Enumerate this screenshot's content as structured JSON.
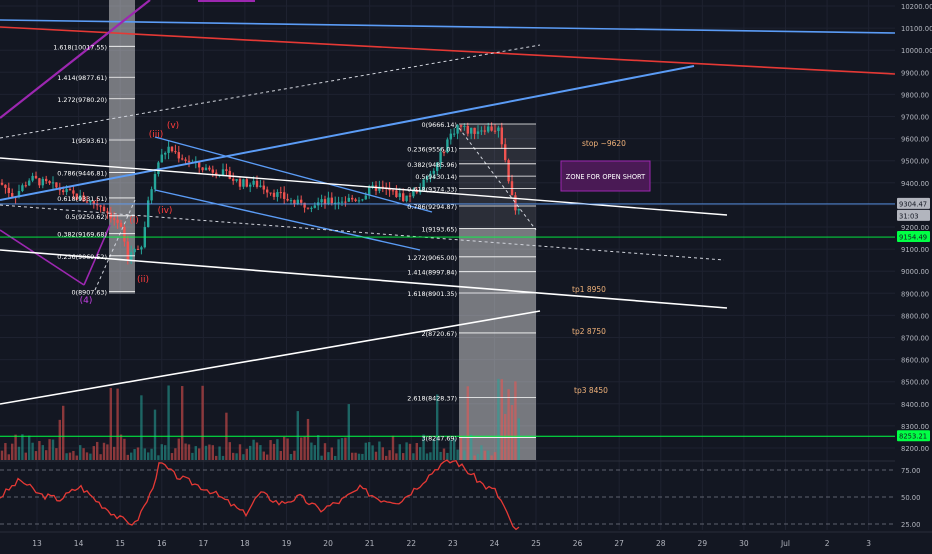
{
  "chart_data": {
    "type": "candlestick",
    "symbol_note": "",
    "y_axis": {
      "ticks": [
        10200,
        10100,
        10000,
        9900,
        9800,
        9700,
        9600,
        9500,
        9400,
        9300,
        9200,
        9100,
        9000,
        8900,
        8800,
        8700,
        8600,
        8500,
        8400,
        8300,
        8200
      ],
      "tick_labels": [
        "10200.00",
        "10100.00",
        "10000.00",
        "9900.00",
        "9800.00",
        "9700.00",
        "9600.00",
        "9500.00",
        "9400.00",
        "9300.00",
        "9200.00",
        "9100.00",
        "9000.00",
        "8900.00",
        "8800.00",
        "8700.00",
        "8600.00",
        "8500.00",
        "8400.00",
        "8300.00",
        "8200.00"
      ],
      "range": [
        8165,
        10235
      ]
    },
    "x_axis": {
      "labels": [
        "13",
        "14",
        "15",
        "16",
        "17",
        "18",
        "19",
        "20",
        "21",
        "22",
        "23",
        "24",
        "25",
        "26",
        "27",
        "28",
        "29",
        "30",
        "Jul",
        "2",
        "3"
      ]
    },
    "price_badges": [
      {
        "value": "9304.47",
        "color": "#b2b5be",
        "text_color": "#131722"
      },
      {
        "value": "31:03",
        "color": "#b2b5be",
        "text_color": "#131722"
      },
      {
        "value": "9154.49",
        "color": "#00ff44",
        "text_color": "#131722"
      },
      {
        "value": "8253.21",
        "color": "#00ff44",
        "text_color": "#131722"
      }
    ],
    "fib_left": {
      "levels": [
        {
          "ratio": "1.618",
          "price": 10017.55,
          "label": "1.618(10017.55)"
        },
        {
          "ratio": "1.414",
          "price": 9877.61,
          "label": "1.414(9877.61)"
        },
        {
          "ratio": "1.272",
          "price": 9780.2,
          "label": "1.272(9780.20)"
        },
        {
          "ratio": "1",
          "price": 9593.61,
          "label": "1(9593.61)"
        },
        {
          "ratio": "0.786",
          "price": 9446.81,
          "label": "0.786(9446.81)"
        },
        {
          "ratio": "0.618",
          "price": 9331.51,
          "label": "0.618(9331.51)"
        },
        {
          "ratio": "0.5",
          "price": 9250.62,
          "label": "0.5(9250.62)"
        },
        {
          "ratio": "0.382",
          "price": 9169.68,
          "label": "0.382(9169.68)"
        },
        {
          "ratio": "0.236",
          "price": 9069.52,
          "label": "0.236(9069.52)"
        },
        {
          "ratio": "0",
          "price": 8907.63,
          "label": "0(8907.63)"
        }
      ]
    },
    "fib_right": {
      "levels": [
        {
          "ratio": "0",
          "price": 9666.14,
          "label": "0(9666.14)"
        },
        {
          "ratio": "0.236",
          "price": 9556.01,
          "label": "0.236(9556.01)"
        },
        {
          "ratio": "0.382",
          "price": 9485.96,
          "label": "0.382(9485.96)"
        },
        {
          "ratio": "0.5",
          "price": 9430.14,
          "label": "0.5(9430.14)"
        },
        {
          "ratio": "0.618",
          "price": 9374.33,
          "label": "0.618(9374.33)"
        },
        {
          "ratio": "0.786",
          "price": 9294.87,
          "label": "0.786(9294.87)"
        },
        {
          "ratio": "1",
          "price": 9193.65,
          "label": "1(9193.65)"
        },
        {
          "ratio": "1.272",
          "price": 9065.0,
          "label": "1.272(9065.00)"
        },
        {
          "ratio": "1.414",
          "price": 8997.84,
          "label": "1.414(8997.84)"
        },
        {
          "ratio": "1.618",
          "price": 8901.35,
          "label": "1.618(8901.35)"
        },
        {
          "ratio": "2",
          "price": 8720.67,
          "label": "2(8720.67)"
        },
        {
          "ratio": "2.618",
          "price": 8428.37,
          "label": "2.618(8428.37)"
        },
        {
          "ratio": "3",
          "price": 8247.69,
          "label": "3(8247.69)"
        }
      ]
    },
    "wave_labels": [
      "(4)",
      "(i)",
      "(ii)",
      "(iii)",
      "(iv)",
      "(v)"
    ],
    "annotations": {
      "stop": "stop ~9620",
      "zone": "ZONE FOR OPEN SHORT",
      "tp1": "tp1 8950",
      "tp2": "tp2 8750",
      "tp3": "tp3 8450"
    },
    "horizontal_levels": [
      {
        "price": 9154.49,
        "color": "#00ff44"
      },
      {
        "price": 8253.21,
        "color": "#00ff44"
      },
      {
        "price": 9304.47,
        "color": "#5b9cf6"
      }
    ],
    "oscillator": {
      "tick_labels": [
        "75.00",
        "50.00",
        "25.00"
      ],
      "ticks": [
        75,
        50,
        25
      ],
      "range": [
        15,
        95
      ]
    },
    "colors": {
      "background": "#131722",
      "up": "#26a69a",
      "down": "#ef5350",
      "blue_line": "#5b9cf6",
      "red_line": "#e53935",
      "purple": "#9c27b0",
      "white": "#ffffff",
      "wave_red": "#ff3d3d",
      "wave_purple": "#c040e0",
      "annotation_orange": "#f0b27a",
      "fib_text": "#ffffff",
      "oscillator_line": "#e53935"
    }
  }
}
